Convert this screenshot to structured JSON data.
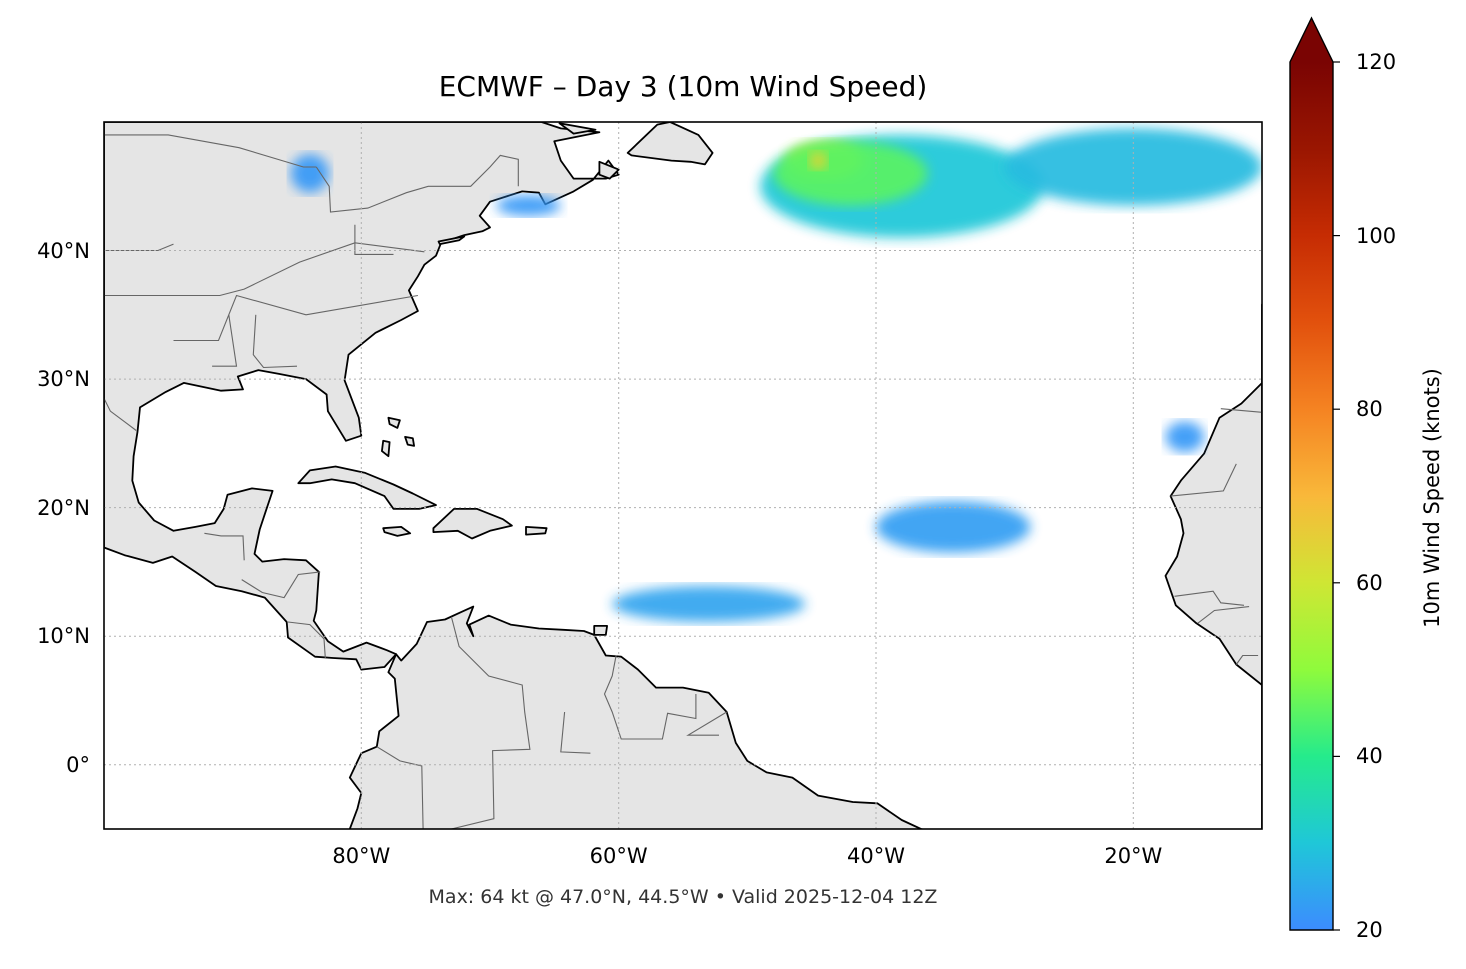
{
  "map": {
    "title": "ECMWF – Day 3 (10m Wind Speed)",
    "caption": "Max: 64 kt @ 47.0°N, 44.5°W • Valid 2025-12-04 12Z",
    "model": "ECMWF",
    "forecast_day": 3,
    "variable": "10m Wind Speed",
    "max_wind": {
      "value_kt": 64,
      "lat": 47.0,
      "lon": -44.5
    },
    "valid_time": "2025-12-04 12Z",
    "extent": {
      "lon_min": -100,
      "lon_max": -10,
      "lat_min": -5,
      "lat_max": 50
    },
    "lat_ticks": [
      {
        "value": 40,
        "label": "40°N"
      },
      {
        "value": 30,
        "label": "30°N"
      },
      {
        "value": 20,
        "label": "20°N"
      },
      {
        "value": 10,
        "label": "10°N"
      },
      {
        "value": 0,
        "label": "0°"
      }
    ],
    "lon_ticks": [
      {
        "value": -80,
        "label": "80°W"
      },
      {
        "value": -60,
        "label": "60°W"
      },
      {
        "value": -40,
        "label": "40°W"
      },
      {
        "value": -20,
        "label": "20°W"
      }
    ],
    "colors": {
      "land": "#e5e5e5",
      "coast": "#000000",
      "borders": "#666666",
      "grid": "#b0b0b0"
    },
    "wind_regions": [
      {
        "name": "north-atlantic-storm",
        "center": [
          -38,
          45
        ],
        "radii": [
          11,
          4
        ],
        "speed_kt": 30
      },
      {
        "name": "north-atlantic-storm-east",
        "center": [
          -20,
          46.5
        ],
        "radii": [
          10,
          3
        ],
        "speed_kt": 28
      },
      {
        "name": "storm-core",
        "center": [
          -44,
          47
        ],
        "radii": [
          3,
          1.5
        ],
        "speed_kt": 55
      },
      {
        "name": "storm-core-ring",
        "center": [
          -42,
          46
        ],
        "radii": [
          6,
          2.5
        ],
        "speed_kt": 45
      },
      {
        "name": "trade-wind-band-west",
        "center": [
          -53,
          12.5
        ],
        "radii": [
          7.5,
          1.4
        ],
        "speed_kt": 24
      },
      {
        "name": "trade-wind-band-east",
        "center": [
          -34,
          18.5
        ],
        "radii": [
          6,
          2
        ],
        "speed_kt": 23
      },
      {
        "name": "canary-winds",
        "center": [
          -16,
          25.5
        ],
        "radii": [
          1.5,
          1.2
        ],
        "speed_kt": 22
      },
      {
        "name": "gulf-of-maine",
        "center": [
          -67,
          43.5
        ],
        "radii": [
          2.5,
          0.8
        ],
        "speed_kt": 22
      },
      {
        "name": "great-lakes",
        "center": [
          -84,
          46
        ],
        "radii": [
          1.5,
          1.5
        ],
        "speed_kt": 22
      }
    ]
  },
  "colorbar": {
    "label": "10m Wind Speed (knots)",
    "min": 20,
    "max": 120,
    "ticks": [
      {
        "value": 120,
        "label": "120"
      },
      {
        "value": 100,
        "label": "100"
      },
      {
        "value": 80,
        "label": "80"
      },
      {
        "value": 60,
        "label": "60"
      },
      {
        "value": 40,
        "label": "40"
      },
      {
        "value": 20,
        "label": "20"
      }
    ],
    "extend": "max",
    "colormap": [
      {
        "value": 0.0,
        "color": "#3c8cff"
      },
      {
        "value": 0.1,
        "color": "#1fc7d8"
      },
      {
        "value": 0.2,
        "color": "#25eb8c"
      },
      {
        "value": 0.3,
        "color": "#8ffb3c"
      },
      {
        "value": 0.4,
        "color": "#cfe634"
      },
      {
        "value": 0.5,
        "color": "#f9b83a"
      },
      {
        "value": 0.6,
        "color": "#f58322"
      },
      {
        "value": 0.7,
        "color": "#e2510d"
      },
      {
        "value": 0.8,
        "color": "#c62c03"
      },
      {
        "value": 0.9,
        "color": "#9a1601"
      },
      {
        "value": 1.0,
        "color": "#7a0403"
      }
    ]
  }
}
